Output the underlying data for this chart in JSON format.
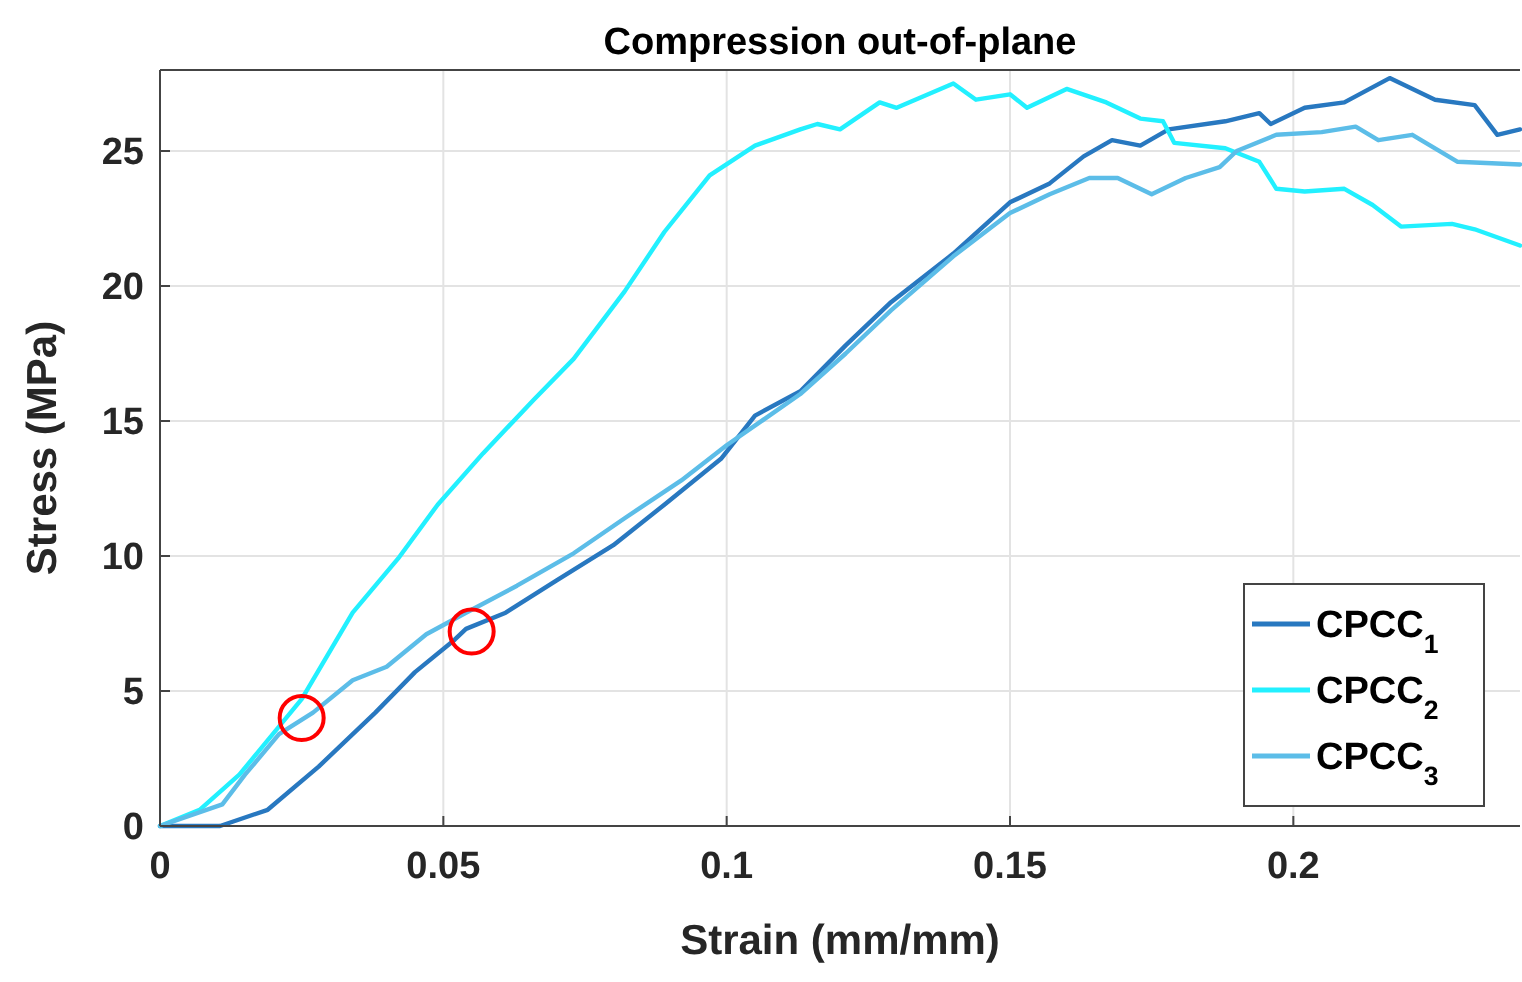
{
  "chart_data": {
    "type": "line",
    "title": "Compression out-of-plane",
    "xlabel": "Strain (mm/mm)",
    "ylabel": "Stress (MPa)",
    "xlim": [
      0,
      0.24
    ],
    "ylim": [
      0,
      28
    ],
    "xticks": [
      0,
      0.05,
      0.1,
      0.15,
      0.2
    ],
    "yticks": [
      0,
      5,
      10,
      15,
      20,
      25
    ],
    "grid": true,
    "legend": "bottom right",
    "line_style": "solid",
    "marker": "none",
    "series": [
      {
        "name": "CPCC$_{1}$",
        "color": "#2878c0",
        "x": [
          0,
          0.0106,
          0.019,
          0.028,
          0.038,
          0.045,
          0.052,
          0.054,
          0.061,
          0.07,
          0.08,
          0.089,
          0.099,
          0.105,
          0.113,
          0.121,
          0.129,
          0.14,
          0.15,
          0.157,
          0.163,
          0.168,
          0.173,
          0.178,
          0.188,
          0.194,
          0.196,
          0.202,
          0.209,
          0.217,
          0.225,
          0.232,
          0.236,
          0.24
        ],
        "values": [
          0,
          0,
          0.6,
          2.2,
          4.2,
          5.7,
          6.9,
          7.3,
          7.9,
          9.1,
          10.4,
          11.9,
          13.6,
          15.2,
          16.1,
          17.8,
          19.4,
          21.2,
          23.1,
          23.8,
          24.8,
          25.4,
          25.2,
          25.8,
          26.1,
          26.4,
          26,
          26.6,
          26.8,
          27.7,
          26.9,
          26.7,
          25.6,
          25.8
        ]
      },
      {
        "name": "CPCC$_{2}$",
        "color": "#22f0ff",
        "x": [
          0,
          0.007,
          0.014,
          0.025,
          0.034,
          0.042,
          0.049,
          0.057,
          0.066,
          0.073,
          0.082,
          0.089,
          0.097,
          0.105,
          0.113,
          0.116,
          0.12,
          0.127,
          0.13,
          0.14,
          0.144,
          0.15,
          0.153,
          0.16,
          0.167,
          0.173,
          0.177,
          0.179,
          0.188,
          0.194,
          0.197,
          0.202,
          0.209,
          0.214,
          0.219,
          0.228,
          0.232,
          0.24
        ],
        "values": [
          0,
          0.6,
          1.9,
          4.7,
          7.9,
          9.9,
          11.9,
          13.8,
          15.8,
          17.3,
          19.8,
          22,
          24.1,
          25.2,
          25.8,
          26,
          25.8,
          26.8,
          26.6,
          27.5,
          26.9,
          27.1,
          26.6,
          27.3,
          26.8,
          26.2,
          26.1,
          25.3,
          25.1,
          24.6,
          23.6,
          23.5,
          23.6,
          23,
          22.2,
          22.3,
          22.1,
          21.5
        ]
      },
      {
        "name": "CPCC$_{3}$",
        "color": "#5cbde8",
        "x": [
          0,
          0.011,
          0.015,
          0.021,
          0.027,
          0.034,
          0.04,
          0.047,
          0.054,
          0.063,
          0.073,
          0.082,
          0.092,
          0.1,
          0.113,
          0.121,
          0.129,
          0.14,
          0.15,
          0.157,
          0.164,
          0.169,
          0.175,
          0.181,
          0.187,
          0.19,
          0.197,
          0.205,
          0.211,
          0.215,
          0.221,
          0.229,
          0.24
        ],
        "values": [
          0,
          0.8,
          1.9,
          3.4,
          4.2,
          5.4,
          5.9,
          7.1,
          7.9,
          8.9,
          10.1,
          11.4,
          12.8,
          14.1,
          16,
          17.5,
          19.1,
          21.1,
          22.7,
          23.4,
          24,
          24,
          23.4,
          24,
          24.4,
          25,
          25.6,
          25.7,
          25.9,
          25.4,
          25.6,
          24.6,
          24.5
        ]
      },
      {
        "type": "scatter",
        "color": "#ff0000",
        "marker": "circle",
        "x": [
          0.025,
          0.055
        ],
        "values": [
          4,
          7.2
        ]
      }
    ]
  }
}
